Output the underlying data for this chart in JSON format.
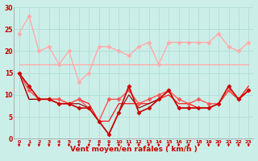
{
  "xlabel": "Vent moyen/en rafales ( km/h )",
  "background_color": "#cceee8",
  "grid_color": "#b0ddd8",
  "x": [
    0,
    1,
    2,
    3,
    4,
    5,
    6,
    7,
    8,
    9,
    10,
    11,
    12,
    13,
    14,
    15,
    16,
    17,
    18,
    19,
    20,
    21,
    22,
    23
  ],
  "lines": [
    {
      "y": [
        24,
        28,
        20,
        21,
        17,
        20,
        13,
        15,
        21,
        21,
        20,
        19,
        21,
        22,
        17,
        22,
        22,
        22,
        22,
        22,
        24,
        21,
        20,
        22
      ],
      "color": "#ffaaaa",
      "lw": 1.0,
      "marker": "D",
      "ms": 2.5,
      "zorder": 2
    },
    {
      "y": [
        17,
        17,
        17,
        17,
        17,
        17,
        17,
        17,
        17,
        17,
        17,
        17,
        17,
        17,
        17,
        17,
        17,
        17,
        17,
        17,
        17,
        17,
        17,
        17
      ],
      "color": "#ffaaaa",
      "lw": 1.0,
      "marker": null,
      "ms": 0,
      "zorder": 2
    },
    {
      "y": [
        15,
        11,
        9,
        9,
        9,
        8,
        9,
        7,
        4,
        9,
        9,
        11,
        8,
        9,
        10,
        11,
        9,
        8,
        9,
        8,
        8,
        11,
        9,
        11
      ],
      "color": "#ff5555",
      "lw": 1.0,
      "marker": "D",
      "ms": 2.5,
      "zorder": 3
    },
    {
      "y": [
        15,
        12,
        9,
        9,
        8,
        8,
        7,
        7,
        4,
        1,
        6,
        12,
        6,
        7,
        9,
        11,
        7,
        7,
        7,
        7,
        8,
        12,
        9,
        11
      ],
      "color": "#cc0000",
      "lw": 1.2,
      "marker": "D",
      "ms": 2.5,
      "zorder": 4
    },
    {
      "y": [
        15,
        9,
        9,
        9,
        9,
        8,
        9,
        8,
        4,
        4,
        8,
        8,
        8,
        8,
        9,
        10,
        8,
        8,
        7,
        7,
        8,
        11,
        9,
        12
      ],
      "color": "#ff0000",
      "lw": 0.8,
      "marker": null,
      "ms": 0,
      "zorder": 2
    },
    {
      "y": [
        15,
        9,
        9,
        9,
        8,
        8,
        8,
        7,
        4,
        1,
        6,
        10,
        7,
        8,
        9,
        11,
        7,
        7,
        7,
        7,
        8,
        11,
        9,
        11
      ],
      "color": "#880000",
      "lw": 0.8,
      "marker": null,
      "ms": 0,
      "zorder": 2
    }
  ],
  "ylim": [
    0,
    30
  ],
  "yticks": [
    0,
    5,
    10,
    15,
    20,
    25,
    30
  ],
  "xlim": [
    -0.5,
    23.5
  ],
  "arrow_color": "#cc0000",
  "tick_color": "#cc0000",
  "xlabel_color": "#cc0000"
}
